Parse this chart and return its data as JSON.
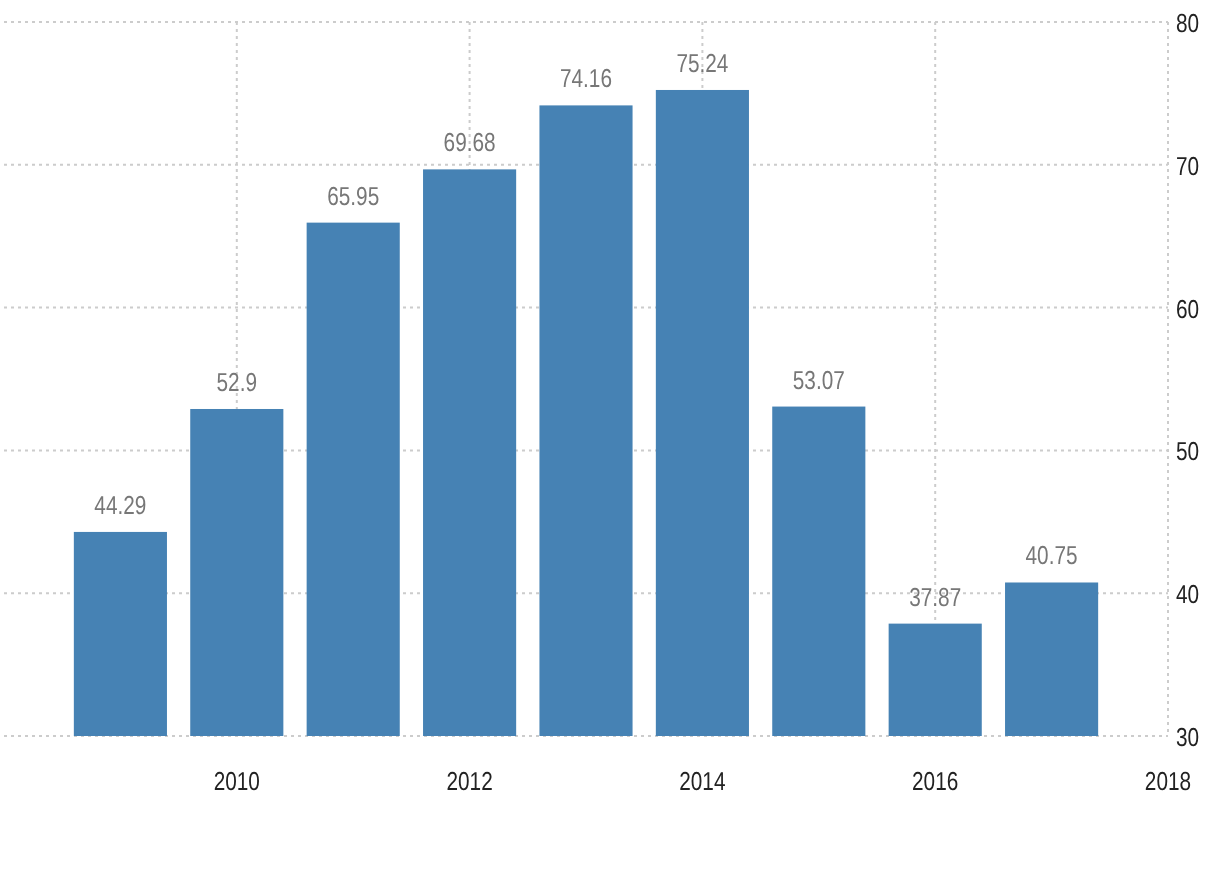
{
  "chart_data": {
    "type": "bar",
    "x": [
      2009,
      2010,
      2011,
      2012,
      2013,
      2014,
      2015,
      2016,
      2017
    ],
    "values": [
      44.29,
      52.9,
      65.95,
      69.68,
      74.16,
      75.24,
      53.07,
      37.87,
      40.75
    ],
    "color": "#4682b4",
    "xlim": [
      2008,
      2018
    ],
    "xticks": [
      2010,
      2012,
      2014,
      2016,
      2018
    ],
    "ylim": [
      30,
      80
    ],
    "yticks": [
      30,
      40,
      50,
      60,
      70,
      80
    ],
    "grid": true,
    "data_labels": true
  }
}
